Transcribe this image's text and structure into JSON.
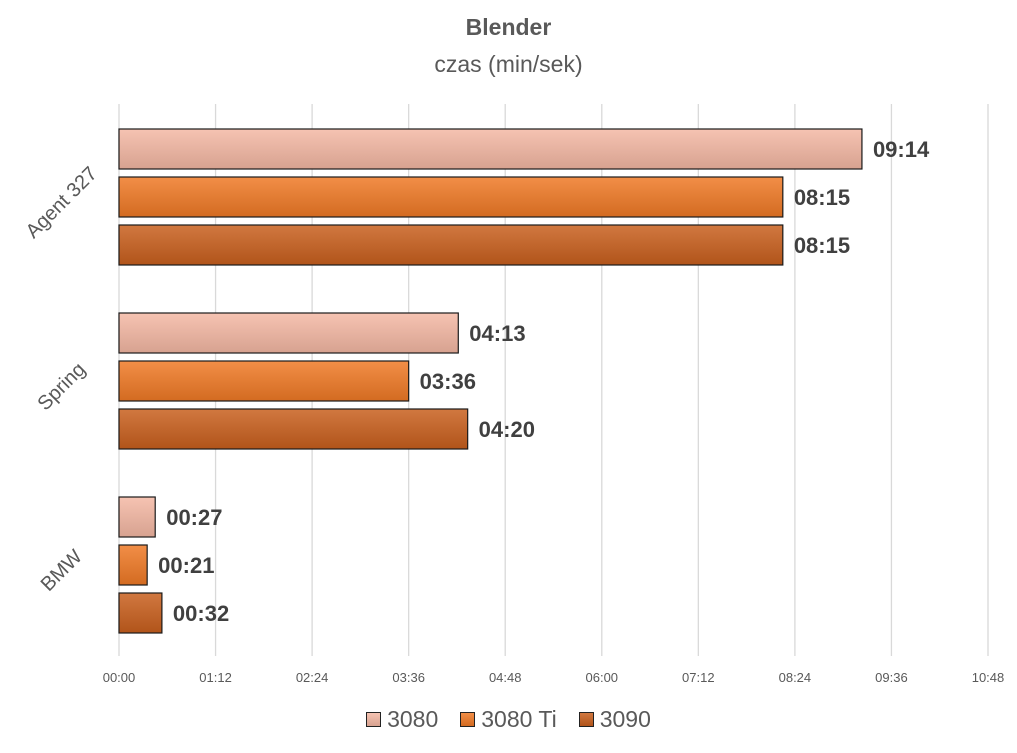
{
  "chart_data": {
    "type": "bar",
    "orientation": "horizontal",
    "title": "Blender",
    "subtitle": "czas (min/sek)",
    "categories": [
      "Agent 327",
      "Spring",
      "BMW"
    ],
    "series": [
      {
        "name": "3080",
        "color": "#F4B8A4",
        "values": [
          554,
          253,
          27
        ],
        "labels": [
          "09:14",
          "04:13",
          "00:27"
        ]
      },
      {
        "name": "3080 Ti",
        "color": "#F07A26",
        "values": [
          495,
          216,
          21
        ],
        "labels": [
          "08:15",
          "03:36",
          "00:21"
        ]
      },
      {
        "name": "3090",
        "color": "#C9601E",
        "values": [
          495,
          260,
          32
        ],
        "labels": [
          "08:15",
          "04:20",
          "00:32"
        ]
      }
    ],
    "x_unit": "seconds",
    "xlim": [
      0,
      648
    ],
    "x_ticks": [
      0,
      72,
      144,
      216,
      288,
      360,
      432,
      504,
      576,
      648
    ],
    "x_tick_labels": [
      "00:00",
      "01:12",
      "02:24",
      "03:36",
      "04:48",
      "06:00",
      "07:12",
      "08:24",
      "09:36",
      "10:48"
    ],
    "grid": true,
    "legend_position": "bottom"
  }
}
